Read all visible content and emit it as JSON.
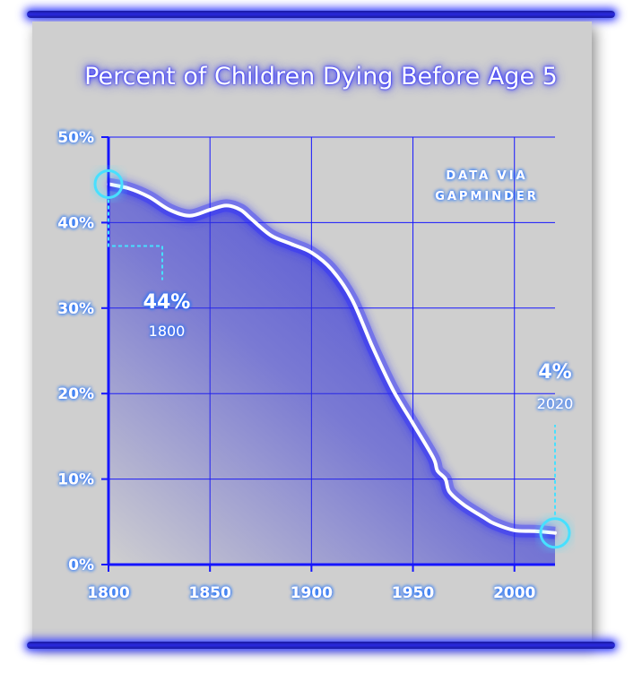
{
  "chart_data": {
    "type": "area",
    "title": "Percent of Children Dying Before Age 5",
    "xlabel": "",
    "ylabel": "",
    "xlim": [
      1800,
      2020
    ],
    "ylim": [
      0,
      50
    ],
    "x_ticks": [
      "1800",
      "1850",
      "1900",
      "1950",
      "2000"
    ],
    "y_ticks": [
      "0%",
      "10%",
      "20%",
      "30%",
      "40%",
      "50%"
    ],
    "grid": true,
    "series": [
      {
        "x": [
          1800,
          1810,
          1820,
          1830,
          1840,
          1850,
          1858,
          1865,
          1870,
          1880,
          1890,
          1900,
          1910,
          1920,
          1930,
          1940,
          1950,
          1960,
          1962,
          1966,
          1968,
          1975,
          1985,
          1990,
          2000,
          2010,
          2020
        ],
        "y": [
          44.5,
          44,
          43,
          41.5,
          40.8,
          41.5,
          42,
          41.5,
          40.5,
          38.5,
          37.5,
          36.5,
          34.5,
          31,
          25.5,
          20.5,
          16.5,
          12.5,
          11,
          10,
          8.5,
          7,
          5.5,
          4.8,
          4,
          3.9,
          3.7
        ]
      }
    ],
    "annotations": [
      {
        "value": "44%",
        "year": "1800"
      },
      {
        "value": "4%",
        "year": "2020"
      }
    ],
    "note": [
      "DATA VIA",
      "GAPMINDER"
    ],
    "colors": {
      "line": "#ffffff",
      "fill": "#3434d6",
      "axis": "#1515ff",
      "glow": "#2a2aff",
      "marker": "#46e0ff"
    }
  }
}
